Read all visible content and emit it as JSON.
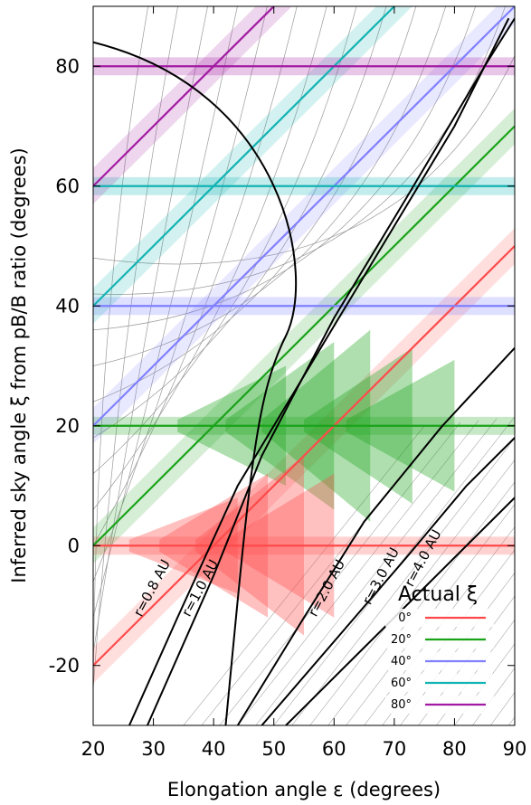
{
  "chart_data": {
    "type": "line",
    "xlabel": "Elongation angle ε (degrees)",
    "ylabel": "Inferred sky angle ξ from pB/B ratio (degrees)",
    "xlim": [
      20,
      90
    ],
    "ylim": [
      -30,
      90
    ],
    "x_ticks": [
      "20",
      "30",
      "40",
      "50",
      "60",
      "70",
      "80",
      "90"
    ],
    "y_ticks": [
      "-20",
      "0",
      "20",
      "40",
      "60",
      "80"
    ],
    "grid": false,
    "legend": {
      "title": "Actual ξ",
      "placement": "bottom-right",
      "entries": [
        {
          "label": "0°",
          "actual_xi": 0,
          "color": "#ff4a4a"
        },
        {
          "label": "20°",
          "actual_xi": 20,
          "color": "#1aa31a"
        },
        {
          "label": "40°",
          "actual_xi": 40,
          "color": "#8080ff"
        },
        {
          "label": "60°",
          "actual_xi": 60,
          "color": "#11b3b3"
        },
        {
          "label": "80°",
          "actual_xi": 80,
          "color": "#a21aa2"
        }
      ]
    },
    "series": [
      {
        "name": "0°",
        "actual_xi": 0,
        "color": "#ff4a4a",
        "horizontal": {
          "y": 0,
          "x": [
            20,
            90
          ]
        },
        "diagonal": {
          "x": [
            20,
            90
          ],
          "y": [
            -20,
            50
          ]
        }
      },
      {
        "name": "20°",
        "actual_xi": 20,
        "color": "#1aa31a",
        "horizontal": {
          "y": 20,
          "x": [
            20,
            90
          ]
        },
        "diagonal": {
          "x": [
            20,
            90
          ],
          "y": [
            0,
            70
          ]
        }
      },
      {
        "name": "40°",
        "actual_xi": 40,
        "color": "#8080ff",
        "horizontal": {
          "y": 40,
          "x": [
            20,
            90
          ]
        },
        "diagonal": {
          "x": [
            20,
            90
          ],
          "y": [
            20,
            90
          ]
        }
      },
      {
        "name": "60°",
        "actual_xi": 60,
        "color": "#11b3b3",
        "horizontal": {
          "y": 60,
          "x": [
            20,
            90
          ]
        },
        "diagonal": {
          "x": [
            20,
            90
          ],
          "y": [
            40,
            110
          ]
        }
      },
      {
        "name": "80°",
        "actual_xi": 80,
        "color": "#a21aa2",
        "horizontal": {
          "y": 80,
          "x": [
            20,
            90
          ]
        },
        "diagonal": {
          "x": [
            20,
            90
          ],
          "y": [
            60,
            130
          ]
        }
      }
    ],
    "distance_curves": [
      {
        "label": "r=0.8 AU",
        "r": 0.8,
        "label_at": [
          28,
          -12
        ]
      },
      {
        "label": "r=1.0 AU",
        "r": 1.0,
        "label_at": [
          36,
          -12
        ]
      },
      {
        "label": "r=2.0 AU",
        "r": 2.0,
        "label_at": [
          57,
          -12
        ]
      },
      {
        "label": "r=3.0 AU",
        "r": 3.0,
        "label_at": [
          66,
          -10
        ]
      },
      {
        "label": "r=4.0 AU",
        "r": 4.0,
        "label_at": [
          73,
          -7
        ]
      }
    ],
    "sun_circle": {
      "r": 1.0,
      "description": "curve with peak elongation near 53° at ξ≈47°"
    },
    "reference_diagonal": {
      "x": [
        20,
        90
      ],
      "y": [
        20,
        90
      ],
      "style": "dashed"
    }
  }
}
